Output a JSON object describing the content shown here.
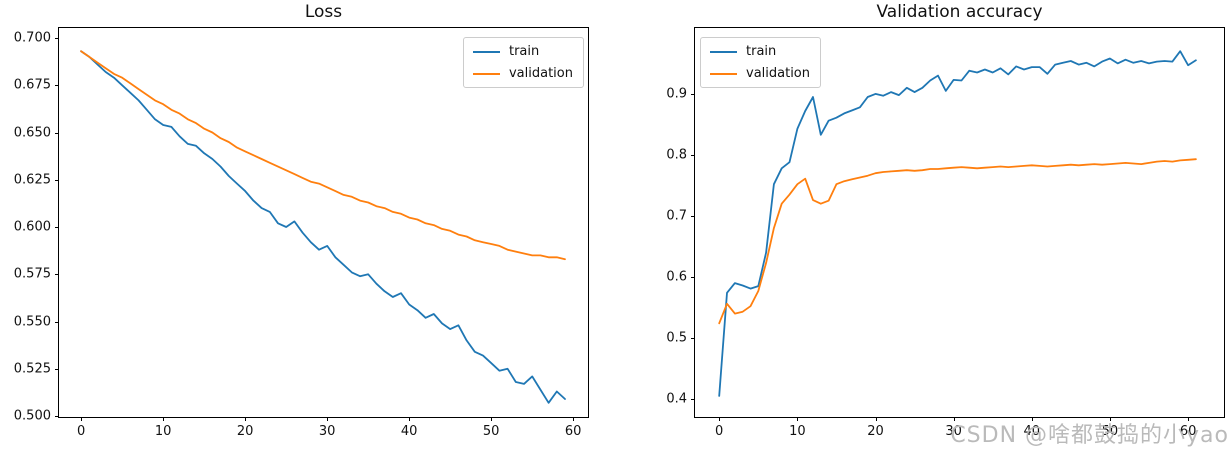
{
  "page": {
    "background": "#ffffff"
  },
  "watermark": {
    "text": "CSDN @啥都鼓捣的小yao",
    "color": "#bababa"
  },
  "chart_data": [
    {
      "type": "line",
      "title": "Loss",
      "xlabel": "",
      "ylabel": "",
      "grid": false,
      "legend_position": "upper-right",
      "xlim": [
        -2.7,
        61.8
      ],
      "ylim": [
        0.4995,
        0.7053
      ],
      "xticks": [
        0,
        10,
        20,
        30,
        40,
        50,
        60
      ],
      "xtick_labels": [
        "0",
        "10",
        "20",
        "30",
        "40",
        "50",
        "60"
      ],
      "yticks": [
        0.5,
        0.525,
        0.55,
        0.575,
        0.6,
        0.625,
        0.65,
        0.675,
        0.7
      ],
      "ytick_labels": [
        "0.500",
        "0.525",
        "0.550",
        "0.575",
        "0.600",
        "0.625",
        "0.650",
        "0.675",
        "0.700"
      ],
      "x": [
        0,
        1,
        2,
        3,
        4,
        5,
        6,
        7,
        8,
        9,
        10,
        11,
        12,
        13,
        14,
        15,
        16,
        17,
        18,
        19,
        20,
        21,
        22,
        23,
        24,
        25,
        26,
        27,
        28,
        29,
        30,
        31,
        32,
        33,
        34,
        35,
        36,
        37,
        38,
        39,
        40,
        41,
        42,
        43,
        44,
        45,
        46,
        47,
        48,
        49,
        50,
        51,
        52,
        53,
        54,
        55,
        56,
        57,
        58,
        59
      ],
      "series": [
        {
          "name": "train",
          "color": "#1f77b4",
          "values": [
            0.693,
            0.69,
            0.686,
            0.682,
            0.679,
            0.675,
            0.671,
            0.667,
            0.662,
            0.657,
            0.654,
            0.653,
            0.648,
            0.644,
            0.643,
            0.639,
            0.636,
            0.632,
            0.627,
            0.623,
            0.619,
            0.614,
            0.61,
            0.608,
            0.602,
            0.6,
            0.603,
            0.597,
            0.592,
            0.588,
            0.59,
            0.584,
            0.58,
            0.576,
            0.574,
            0.575,
            0.57,
            0.566,
            0.563,
            0.565,
            0.559,
            0.556,
            0.552,
            0.554,
            0.549,
            0.546,
            0.548,
            0.54,
            0.534,
            0.532,
            0.528,
            0.524,
            0.525,
            0.518,
            0.517,
            0.521,
            0.514,
            0.507,
            0.513,
            0.509
          ]
        },
        {
          "name": "validation",
          "color": "#ff7f0e",
          "values": [
            0.693,
            0.69,
            0.687,
            0.684,
            0.681,
            0.679,
            0.676,
            0.673,
            0.67,
            0.667,
            0.665,
            0.662,
            0.66,
            0.657,
            0.655,
            0.652,
            0.65,
            0.647,
            0.645,
            0.642,
            0.64,
            0.638,
            0.636,
            0.634,
            0.632,
            0.63,
            0.628,
            0.626,
            0.624,
            0.623,
            0.621,
            0.619,
            0.617,
            0.616,
            0.614,
            0.613,
            0.611,
            0.61,
            0.608,
            0.607,
            0.605,
            0.604,
            0.602,
            0.601,
            0.599,
            0.598,
            0.596,
            0.595,
            0.593,
            0.592,
            0.591,
            0.59,
            0.588,
            0.587,
            0.586,
            0.585,
            0.585,
            0.584,
            0.584,
            0.583
          ]
        }
      ]
    },
    {
      "type": "line",
      "title": "Validation accuracy",
      "xlabel": "",
      "ylabel": "",
      "grid": false,
      "legend_position": "upper-left",
      "xlim": [
        -3.1,
        64.6
      ],
      "ylim": [
        0.3705,
        1.008
      ],
      "xticks": [
        0,
        10,
        20,
        30,
        40,
        50,
        60
      ],
      "xtick_labels": [
        "0",
        "10",
        "20",
        "30",
        "40",
        "50",
        "60"
      ],
      "yticks": [
        0.4,
        0.5,
        0.6,
        0.7,
        0.8,
        0.9
      ],
      "ytick_labels": [
        "0.4",
        "0.5",
        "0.6",
        "0.7",
        "0.8",
        "0.9"
      ],
      "x": [
        0,
        1,
        2,
        3,
        4,
        5,
        6,
        7,
        8,
        9,
        10,
        11,
        12,
        13,
        14,
        15,
        16,
        17,
        18,
        19,
        20,
        21,
        22,
        23,
        24,
        25,
        26,
        27,
        28,
        29,
        30,
        31,
        32,
        33,
        34,
        35,
        36,
        37,
        38,
        39,
        40,
        41,
        42,
        43,
        44,
        45,
        46,
        47,
        48,
        49,
        50,
        51,
        52,
        53,
        54,
        55,
        56,
        57,
        58,
        59,
        60,
        61
      ],
      "series": [
        {
          "name": "train",
          "color": "#1f77b4",
          "values": [
            0.405,
            0.574,
            0.59,
            0.586,
            0.581,
            0.585,
            0.64,
            0.752,
            0.778,
            0.788,
            0.843,
            0.872,
            0.895,
            0.833,
            0.856,
            0.861,
            0.868,
            0.873,
            0.878,
            0.895,
            0.9,
            0.897,
            0.903,
            0.898,
            0.91,
            0.903,
            0.91,
            0.922,
            0.93,
            0.905,
            0.923,
            0.922,
            0.938,
            0.935,
            0.94,
            0.935,
            0.942,
            0.932,
            0.945,
            0.94,
            0.944,
            0.944,
            0.933,
            0.948,
            0.951,
            0.954,
            0.948,
            0.951,
            0.945,
            0.953,
            0.958,
            0.95,
            0.956,
            0.951,
            0.954,
            0.95,
            0.953,
            0.954,
            0.953,
            0.97,
            0.947,
            0.955
          ]
        },
        {
          "name": "validation",
          "color": "#ff7f0e",
          "values": [
            0.524,
            0.556,
            0.54,
            0.543,
            0.552,
            0.577,
            0.623,
            0.68,
            0.72,
            0.735,
            0.752,
            0.761,
            0.726,
            0.72,
            0.725,
            0.752,
            0.757,
            0.76,
            0.763,
            0.766,
            0.77,
            0.772,
            0.773,
            0.774,
            0.775,
            0.774,
            0.775,
            0.777,
            0.777,
            0.778,
            0.779,
            0.78,
            0.779,
            0.778,
            0.779,
            0.78,
            0.781,
            0.78,
            0.781,
            0.782,
            0.783,
            0.782,
            0.781,
            0.782,
            0.783,
            0.784,
            0.783,
            0.784,
            0.785,
            0.784,
            0.785,
            0.786,
            0.787,
            0.786,
            0.785,
            0.787,
            0.789,
            0.79,
            0.789,
            0.791,
            0.792,
            0.793
          ]
        }
      ]
    }
  ]
}
